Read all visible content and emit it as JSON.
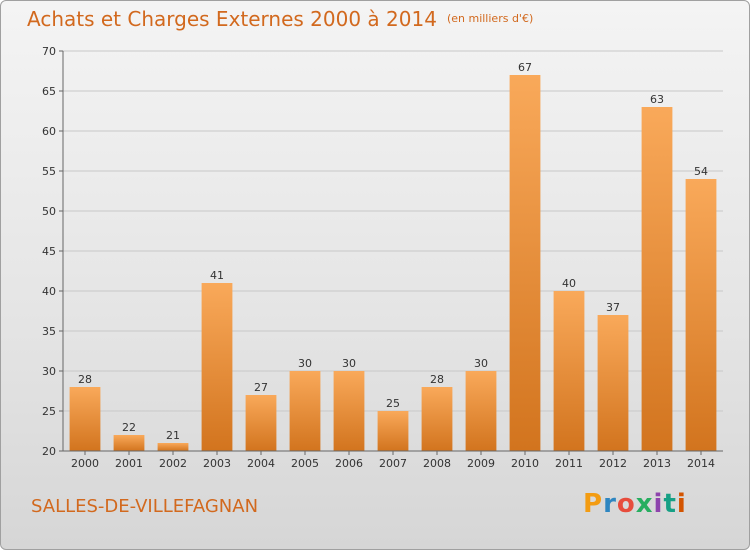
{
  "header": {
    "title": "Achats et Charges Externes 2000 à 2014",
    "subtitle": "(en milliers d'€)"
  },
  "footer": {
    "city": "SALLES-DE-VILLEFAGNAN",
    "logo": "Proxiti",
    "logo_colors": [
      "#f39c12",
      "#2e86c1",
      "#e74c3c",
      "#27ae60",
      "#8e44ad",
      "#16a085",
      "#d35400"
    ]
  },
  "chart_data": {
    "type": "bar",
    "title": "Achats et Charges Externes 2000 à 2014",
    "subtitle": "(en milliers d'€)",
    "xlabel": "",
    "ylabel": "",
    "categories": [
      "2000",
      "2001",
      "2002",
      "2003",
      "2004",
      "2005",
      "2006",
      "2007",
      "2008",
      "2009",
      "2010",
      "2011",
      "2012",
      "2013",
      "2014"
    ],
    "values": [
      28,
      22,
      21,
      41,
      27,
      30,
      30,
      25,
      28,
      30,
      67,
      40,
      37,
      63,
      54
    ],
    "ylim": [
      20,
      70
    ],
    "yticks": [
      20,
      25,
      30,
      35,
      40,
      45,
      50,
      55,
      60,
      65,
      70
    ],
    "grid": true,
    "bar_color_light": "#f9a95a",
    "bar_color_dark": "#d2741e"
  }
}
